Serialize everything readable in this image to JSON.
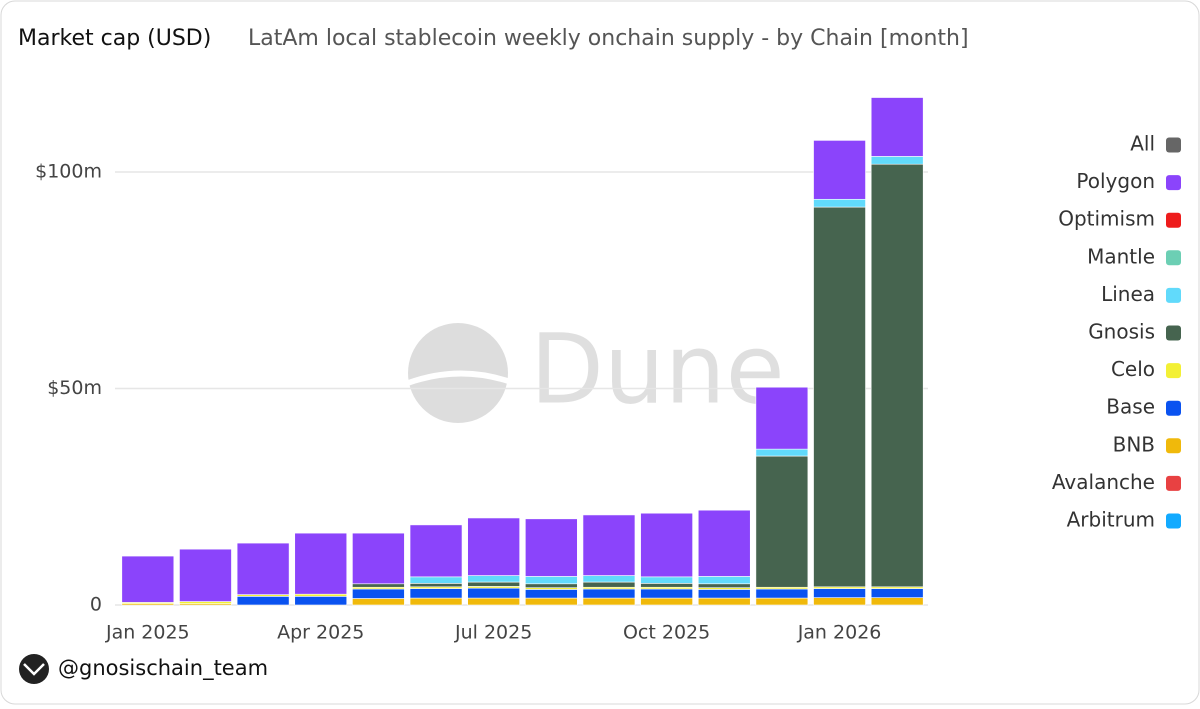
{
  "chart_data": {
    "type": "stacked-bar",
    "title": "Market cap (USD)",
    "subtitle": "LatAm local stablecoin weekly onchain supply - by Chain [month]",
    "categories": [
      "Jan 2025",
      null,
      null,
      "Apr 2025",
      null,
      null,
      "Jul 2025",
      null,
      null,
      "Oct 2025",
      null,
      null,
      "Jan 2026",
      null
    ],
    "ylim": [
      0,
      120
    ],
    "yticks": [
      0,
      {
        "value": 50,
        "label": "$50m"
      },
      {
        "value": 100,
        "label": "$100m"
      }
    ],
    "grid": true,
    "legend": "right",
    "series": [
      {
        "name": "All",
        "color": "#666666",
        "values": [
          0,
          0,
          0,
          0,
          0,
          0,
          0,
          0,
          0,
          0,
          0,
          0,
          0,
          0
        ]
      },
      {
        "name": "Polygon",
        "color": "#8b44fb",
        "values": [
          10.7,
          12.1,
          11.9,
          14.1,
          11.7,
          12.0,
          13.3,
          13.3,
          14.0,
          14.7,
          15.3,
          14.3,
          13.6,
          13.6
        ]
      },
      {
        "name": "Optimism",
        "color": "#ee1c1c",
        "values": [
          0,
          0,
          0,
          0,
          0,
          0,
          0,
          0,
          0,
          0,
          0,
          0,
          0,
          0
        ]
      },
      {
        "name": "Mantle",
        "color": "#6ccfb4",
        "values": [
          0,
          0,
          0,
          0,
          0,
          0,
          0,
          0,
          0,
          0,
          0,
          0,
          0,
          0
        ]
      },
      {
        "name": "Linea",
        "color": "#61dafb",
        "values": [
          0,
          0,
          0,
          0,
          0,
          1.5,
          1.5,
          1.7,
          1.5,
          1.5,
          1.7,
          1.6,
          1.8,
          1.8
        ]
      },
      {
        "name": "Gnosis",
        "color": "#46644f",
        "values": [
          0,
          0,
          0,
          0,
          0.8,
          0.8,
          1.0,
          0.9,
          1.2,
          0.9,
          0.9,
          30.3,
          87.7,
          97.6
        ]
      },
      {
        "name": "Celo",
        "color": "#f3f035",
        "values": [
          0.3,
          0.5,
          0.4,
          0.5,
          0.4,
          0.4,
          0.4,
          0.4,
          0.4,
          0.4,
          0.4,
          0.4,
          0.4,
          0.4
        ]
      },
      {
        "name": "Base",
        "color": "#0a52f0",
        "values": [
          0,
          0,
          2.0,
          2.0,
          2.2,
          2.2,
          2.3,
          2.0,
          2.1,
          2.1,
          2.0,
          2.1,
          2.1,
          2.1
        ]
      },
      {
        "name": "BNB",
        "color": "#f0b90b",
        "values": [
          0.3,
          0.3,
          0,
          0,
          1.5,
          1.6,
          1.6,
          1.6,
          1.6,
          1.6,
          1.6,
          1.6,
          1.7,
          1.7
        ]
      },
      {
        "name": "Avalanche",
        "color": "#e84142",
        "values": [
          0,
          0,
          0,
          0,
          0,
          0,
          0,
          0,
          0,
          0,
          0,
          0,
          0,
          0
        ]
      },
      {
        "name": "Arbitrum",
        "color": "#12aaff",
        "values": [
          0,
          0,
          0,
          0,
          0,
          0,
          0,
          0,
          0,
          0,
          0,
          0,
          0,
          0
        ]
      }
    ]
  },
  "watermark": "Dune",
  "footer": "@gnosischain_team"
}
